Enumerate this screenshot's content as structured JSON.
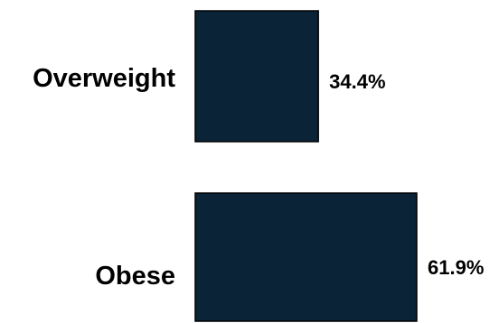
{
  "chart_data": {
    "type": "bar",
    "orientation": "horizontal",
    "categories": [
      "Overweight",
      "Obese"
    ],
    "values": [
      34.4,
      61.9
    ],
    "value_labels": [
      "34.4%",
      "61.9%"
    ],
    "bar_color": "#0a2336",
    "bar_outline": "#000000",
    "title": "",
    "xlabel": "",
    "ylabel": "",
    "grid": false,
    "legend": false
  }
}
